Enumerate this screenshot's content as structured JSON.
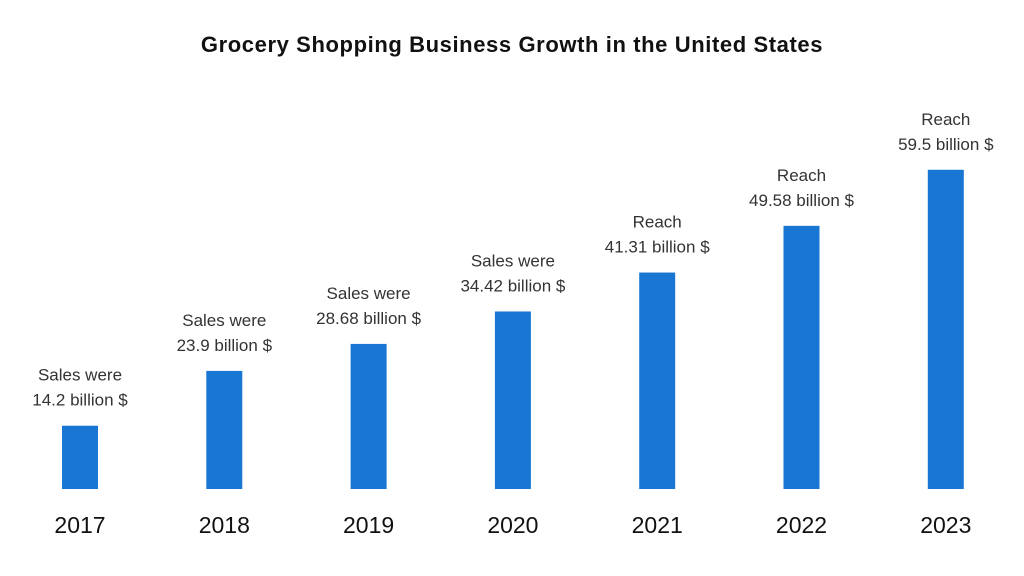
{
  "chart_data": {
    "type": "bar",
    "title": "Grocery Shopping Business Growth in the United States",
    "xlabel": "",
    "ylabel": "",
    "categories": [
      "2017",
      "2018",
      "2019",
      "2020",
      "2021",
      "2022",
      "2023"
    ],
    "values": [
      14.2,
      23.9,
      28.68,
      34.42,
      41.31,
      49.58,
      59.5
    ],
    "data_labels": [
      [
        "Sales were",
        "14.2 billion $"
      ],
      [
        "Sales were",
        "23.9 billion $"
      ],
      [
        "Sales were",
        "28.68 billion $"
      ],
      [
        "Sales were",
        "34.42 billion $"
      ],
      [
        "Reach",
        "41.31 billion $"
      ],
      [
        "Reach",
        "49.58 billion $"
      ],
      [
        "Reach",
        "59.5 billion $"
      ]
    ],
    "unit": "billion $",
    "ylim": [
      3,
      64
    ],
    "grid": false,
    "legend": "none",
    "bar_color": "#1976D2"
  }
}
